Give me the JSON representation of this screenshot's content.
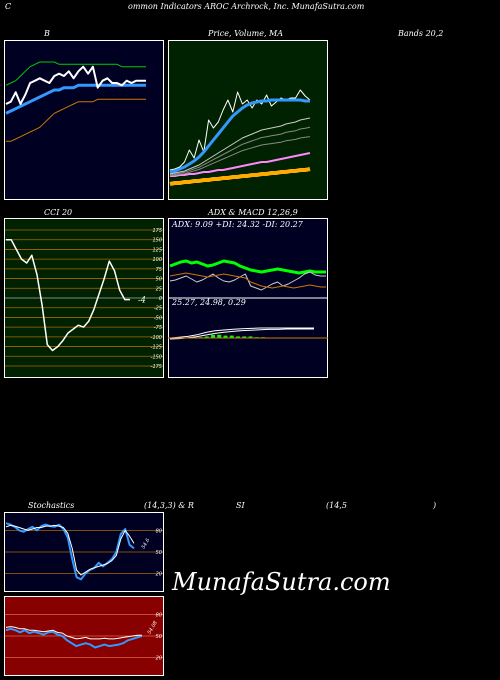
{
  "header": {
    "c": "C",
    "title": "ommon  Indicators AROC Archrock, Inc. MunafaSutra.com"
  },
  "labels": {
    "b": "B",
    "price_volume_ma": "Price,  Volume,  MA",
    "bands": "Bands 20,2",
    "cci": "CCI 20",
    "adx_macd": "ADX  & MACD 12,26,9",
    "stochastics": "Stochastics",
    "stoch_params": "(14,3,3) & R",
    "si": "SI",
    "rsi_params": "(14,5",
    "close_paren": ")"
  },
  "adx_values": "ADX: 9.09  +DI: 24.32  -DI: 20.27",
  "macd_values": "25.27,  24.98,  0.29",
  "watermark": "MunafaSutra.com",
  "colors": {
    "bands_bg": "#000022",
    "price_bg": "#002200",
    "cci_bg": "#002200",
    "macd_bg": "#000022",
    "stoch_bg": "#000022",
    "rsi_bg": "#880000"
  },
  "chart_data": [
    {
      "name": "bollinger-bands",
      "type": "line",
      "x": [
        0,
        1,
        2,
        3,
        4,
        5,
        6,
        7,
        8,
        9,
        10,
        11,
        12,
        13,
        14,
        15,
        16,
        17,
        18,
        19,
        20,
        21,
        22,
        23,
        24,
        25,
        26,
        27,
        28,
        29
      ],
      "series": [
        {
          "role": "upper",
          "color": "#00cc00",
          "values": [
            32,
            33,
            34,
            36,
            38,
            40,
            41,
            42,
            42,
            42,
            42,
            41,
            41,
            41,
            41,
            41,
            41,
            41,
            41,
            41,
            41,
            41,
            41,
            41,
            40,
            40,
            40,
            40,
            40,
            40
          ]
        },
        {
          "role": "middle",
          "color": "#3399ff",
          "values": [
            20,
            21,
            22,
            23,
            24,
            25,
            26,
            27,
            28,
            29,
            30,
            30,
            31,
            31,
            31,
            32,
            32,
            32,
            32,
            32,
            32,
            32,
            32,
            32,
            32,
            32,
            32,
            32,
            32,
            32
          ]
        },
        {
          "role": "lower",
          "color": "#cc7700",
          "values": [
            8,
            8,
            9,
            10,
            11,
            12,
            13,
            14,
            16,
            18,
            20,
            21,
            22,
            23,
            24,
            25,
            25,
            25,
            25,
            26,
            26,
            26,
            26,
            26,
            26,
            26,
            26,
            26,
            26,
            26
          ]
        },
        {
          "role": "price",
          "color": "#ffffff",
          "values": [
            24,
            25,
            29,
            24,
            28,
            33,
            34,
            35,
            34,
            33,
            36,
            37,
            36,
            38,
            35,
            38,
            40,
            37,
            40,
            31,
            34,
            35,
            33,
            33,
            32,
            34,
            33,
            34,
            34,
            34
          ]
        }
      ],
      "ylim": [
        0,
        60
      ]
    },
    {
      "name": "price-volume-ma",
      "type": "line",
      "x": [
        0,
        1,
        2,
        3,
        4,
        5,
        6,
        7,
        8,
        9,
        10,
        11,
        12,
        13,
        14,
        15,
        16,
        17,
        18,
        19,
        20,
        21,
        22,
        23,
        24,
        25,
        26,
        27,
        28,
        29
      ],
      "series": [
        {
          "role": "price",
          "color": "#ffffff",
          "values": [
            10,
            11,
            13,
            18,
            30,
            22,
            40,
            28,
            60,
            52,
            58,
            70,
            80,
            68,
            88,
            76,
            80,
            72,
            80,
            76,
            85,
            74,
            78,
            82,
            80,
            82,
            82,
            90,
            84,
            80
          ]
        },
        {
          "role": "ma-short",
          "color": "#3399ff",
          "values": [
            8,
            9,
            11,
            13,
            16,
            19,
            23,
            28,
            34,
            40,
            46,
            52,
            58,
            64,
            68,
            72,
            75,
            77,
            78,
            79,
            79,
            80,
            80,
            80,
            80,
            80,
            80,
            80,
            79,
            79
          ]
        },
        {
          "role": "ma-mid",
          "color": "#cccccc",
          "values": [
            6,
            7,
            8,
            9,
            11,
            13,
            15,
            18,
            21,
            24,
            27,
            30,
            33,
            36,
            39,
            42,
            44,
            46,
            48,
            50,
            51,
            52,
            53,
            54,
            56,
            57,
            58,
            60,
            61,
            62
          ]
        },
        {
          "role": "ma-long-1",
          "color": "#ff88ff",
          "values": [
            4,
            4,
            5,
            5,
            6,
            6,
            7,
            8,
            8,
            9,
            10,
            10,
            11,
            12,
            13,
            14,
            15,
            16,
            17,
            18,
            18,
            19,
            20,
            21,
            22,
            23,
            24,
            25,
            26,
            27
          ]
        },
        {
          "role": "ma-long-2",
          "color": "#ffaa00",
          "values": [
            -4,
            -3,
            -3,
            -2,
            -2,
            -1,
            -1,
            0,
            0,
            1,
            1,
            2,
            2,
            3,
            3,
            4,
            4,
            5,
            5,
            6,
            6,
            7,
            7,
            8,
            8,
            9,
            9,
            10,
            10,
            11
          ]
        }
      ]
    },
    {
      "name": "cci-20",
      "type": "line",
      "y_ticks": [
        175,
        150,
        125,
        100,
        75,
        50,
        25,
        0,
        -25,
        -50,
        -75,
        -100,
        -125,
        -150,
        -175
      ],
      "last_value_label": "-4",
      "values": [
        150,
        150,
        125,
        100,
        90,
        110,
        60,
        -20,
        -120,
        -135,
        -125,
        -110,
        -90,
        -80,
        -70,
        -75,
        -60,
        -30,
        10,
        50,
        95,
        70,
        20,
        -4,
        -4
      ],
      "ylim": [
        -175,
        175
      ]
    },
    {
      "name": "adx",
      "type": "line",
      "series": [
        {
          "name": "+DI",
          "color": "#00ff00",
          "values": [
            30,
            32,
            34,
            35,
            33,
            34,
            32,
            30,
            31,
            33,
            35,
            34,
            33,
            30,
            28,
            26,
            25,
            24,
            25,
            26,
            27,
            26,
            25,
            24,
            23,
            24,
            25,
            24,
            24,
            24
          ]
        },
        {
          "name": "-DI",
          "color": "#cccccc",
          "values": [
            15,
            16,
            18,
            20,
            17,
            14,
            16,
            19,
            22,
            18,
            15,
            14,
            16,
            19,
            22,
            10,
            8,
            6,
            9,
            12,
            14,
            10,
            12,
            15,
            18,
            22,
            24,
            21,
            20,
            20
          ]
        },
        {
          "name": "ADX",
          "color": "#cc7700",
          "values": [
            20,
            21,
            22,
            23,
            22,
            21,
            20,
            19,
            20,
            21,
            22,
            21,
            20,
            19,
            18,
            14,
            12,
            10,
            9,
            8,
            9,
            10,
            9,
            8,
            9,
            10,
            11,
            10,
            9,
            9
          ]
        }
      ],
      "ylim": [
        0,
        60
      ]
    },
    {
      "name": "macd",
      "type": "line",
      "series": [
        {
          "name": "macd",
          "color": "#ffffff",
          "values": [
            0,
            2,
            4,
            8,
            14,
            18,
            20,
            22,
            23,
            24,
            25,
            25,
            25,
            25,
            25,
            25,
            25
          ]
        },
        {
          "name": "signal",
          "color": "#ffffff",
          "values": [
            0,
            1,
            3,
            6,
            10,
            14,
            17,
            19,
            21,
            22,
            23,
            24,
            24,
            25,
            25,
            25,
            25
          ]
        },
        {
          "name": "histogram",
          "color": "#00ff00",
          "values": [
            0,
            1,
            1,
            2,
            4,
            4,
            3,
            3,
            2,
            2,
            2,
            1,
            1,
            0,
            0,
            0,
            0
          ]
        }
      ]
    },
    {
      "name": "stochastics",
      "type": "line",
      "y_ticks": [
        80,
        50,
        20
      ],
      "last_value_label": "54.6",
      "series": [
        {
          "role": "k",
          "color": "#3399ff",
          "values": [
            90,
            88,
            85,
            80,
            78,
            82,
            85,
            80,
            86,
            88,
            86,
            85,
            88,
            82,
            70,
            40,
            15,
            12,
            20,
            25,
            28,
            35,
            30,
            35,
            40,
            50,
            75,
            82,
            60,
            55
          ]
        },
        {
          "role": "d",
          "color": "#ffffff",
          "values": [
            85,
            87,
            86,
            84,
            82,
            80,
            82,
            84,
            84,
            86,
            86,
            87,
            86,
            84,
            76,
            55,
            25,
            18,
            22,
            26,
            28,
            30,
            32,
            34,
            38,
            45,
            68,
            80,
            72,
            62
          ]
        }
      ],
      "ylim": [
        0,
        100
      ]
    },
    {
      "name": "rsi",
      "type": "line",
      "y_ticks": [
        80,
        50,
        20
      ],
      "last_value_label": "54.08",
      "series": [
        {
          "role": "rsi",
          "color": "#3399ff",
          "values": [
            58,
            60,
            58,
            55,
            58,
            54,
            56,
            54,
            52,
            55,
            56,
            52,
            50,
            44,
            40,
            36,
            38,
            40,
            38,
            34,
            36,
            38,
            36,
            37,
            38,
            40,
            44,
            46,
            48,
            50
          ]
        },
        {
          "role": "mfi",
          "color": "#ffffff",
          "values": [
            62,
            63,
            62,
            60,
            60,
            58,
            58,
            57,
            56,
            57,
            58,
            55,
            54,
            50,
            48,
            46,
            47,
            48,
            46,
            46,
            46,
            47,
            46,
            46,
            47,
            48,
            49,
            50,
            51,
            51
          ]
        }
      ],
      "ylim": [
        0,
        100
      ]
    }
  ]
}
